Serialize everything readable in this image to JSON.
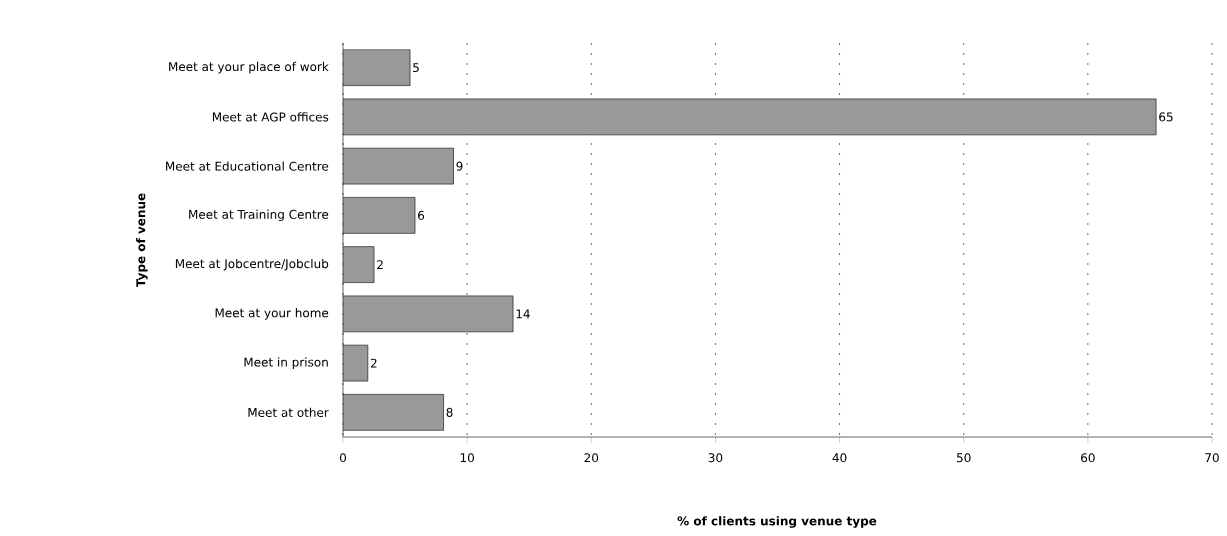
{
  "chart_data": {
    "type": "bar",
    "orientation": "horizontal",
    "xlabel": "% of clients using venue type",
    "ylabel": "Type of venue",
    "categories": [
      "Meet at your place of work",
      "Meet at AGP offices",
      "Meet at Educational Centre",
      "Meet at Training Centre",
      "Meet at Jobcentre/Jobclub",
      "Meet at your home",
      "Meet in prison",
      "Meet at other"
    ],
    "values": [
      5.4,
      65.5,
      8.9,
      5.8,
      2.5,
      13.7,
      2.0,
      8.1
    ],
    "value_labels": [
      "5",
      "65",
      "9",
      "6",
      "2",
      "14",
      "2",
      "8"
    ],
    "color": "#999999",
    "xlim": [
      0,
      70
    ],
    "xticks": [
      0,
      10,
      20,
      30,
      40,
      50,
      60,
      70
    ],
    "grid": "x"
  }
}
